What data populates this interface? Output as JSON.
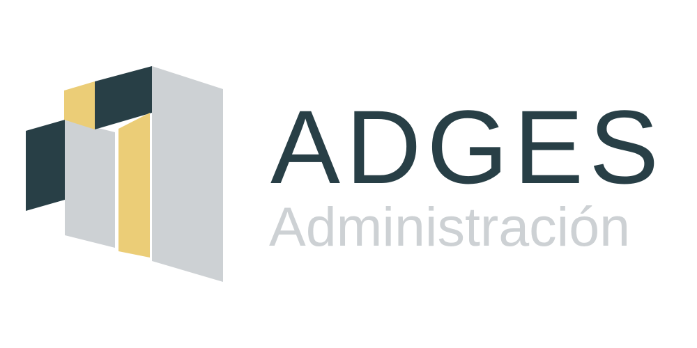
{
  "logo": {
    "name": "ADGES",
    "tagline": "Administración"
  },
  "colors": {
    "dark": "#283f46",
    "gold": "#ebcd77",
    "gray": "#cdd1d4",
    "background": "#ffffff"
  },
  "icon": "building-blocks-icon"
}
